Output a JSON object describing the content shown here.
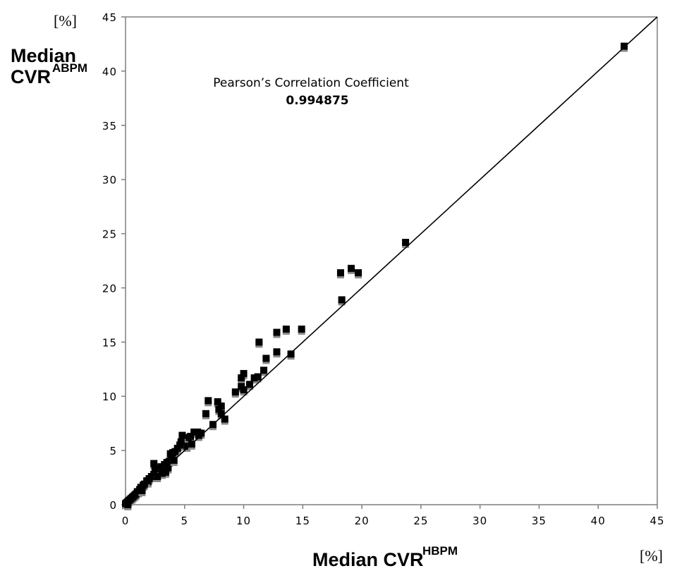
{
  "chart_data": {
    "type": "scatter",
    "title": "",
    "xlabel": "Median CVR",
    "xlabel_sup": "HBPM",
    "xunit": "[%]",
    "ylabel_line1": "Median",
    "ylabel_line2": "CVR",
    "ylabel_sup": "ABPM",
    "yunit": "[%]",
    "xlim": [
      0,
      45
    ],
    "ylim": [
      0,
      45
    ],
    "xticks": [
      "0",
      "5",
      "10",
      "15",
      "20",
      "25",
      "30",
      "35",
      "40",
      "45"
    ],
    "yticks": [
      "0",
      "5",
      "10",
      "15",
      "20",
      "25",
      "30",
      "35",
      "40",
      "45"
    ],
    "grid": false,
    "reference_line": {
      "from": [
        0,
        0
      ],
      "to": [
        45,
        45
      ],
      "label": "identity"
    },
    "annotation": {
      "label": "Pearson’s Correlation Coefficient",
      "value": "0.994875"
    },
    "colors": {
      "marker": "#000000",
      "marker_shadow": "#8a8a8a",
      "line": "#000000",
      "axis": "#7f7f7f"
    },
    "points": [
      [
        42.2,
        42.3
      ],
      [
        23.7,
        24.2
      ],
      [
        18.2,
        21.4
      ],
      [
        19.1,
        21.8
      ],
      [
        19.7,
        21.4
      ],
      [
        18.3,
        18.9
      ],
      [
        12.8,
        15.9
      ],
      [
        13.6,
        16.2
      ],
      [
        14.9,
        16.2
      ],
      [
        11.3,
        15.0
      ],
      [
        12.8,
        14.1
      ],
      [
        14.0,
        13.9
      ],
      [
        11.9,
        13.5
      ],
      [
        11.7,
        12.4
      ],
      [
        11.2,
        11.8
      ],
      [
        10.9,
        11.7
      ],
      [
        10.5,
        11.1
      ],
      [
        10.0,
        12.1
      ],
      [
        9.8,
        11.7
      ],
      [
        9.8,
        10.9
      ],
      [
        10.0,
        10.6
      ],
      [
        9.3,
        10.4
      ],
      [
        7.0,
        9.6
      ],
      [
        7.8,
        9.5
      ],
      [
        8.1,
        9.1
      ],
      [
        7.9,
        8.8
      ],
      [
        6.8,
        8.4
      ],
      [
        8.1,
        8.4
      ],
      [
        8.4,
        7.9
      ],
      [
        7.4,
        7.4
      ],
      [
        6.4,
        6.6
      ],
      [
        6.1,
        6.7
      ],
      [
        5.8,
        6.7
      ],
      [
        5.5,
        6.3
      ],
      [
        5.3,
        6.0
      ],
      [
        5.0,
        6.2
      ],
      [
        4.8,
        6.4
      ],
      [
        4.7,
        5.8
      ],
      [
        4.6,
        5.5
      ],
      [
        5.2,
        5.4
      ],
      [
        4.4,
        5.2
      ],
      [
        4.2,
        4.9
      ],
      [
        4.0,
        4.8
      ],
      [
        3.8,
        4.7
      ],
      [
        3.9,
        4.3
      ],
      [
        3.7,
        4.0
      ],
      [
        3.5,
        3.9
      ],
      [
        3.3,
        3.7
      ],
      [
        3.6,
        3.4
      ],
      [
        3.2,
        3.3
      ],
      [
        3.0,
        3.5
      ],
      [
        2.8,
        3.3
      ],
      [
        2.6,
        3.0
      ],
      [
        2.4,
        3.8
      ],
      [
        2.5,
        3.3
      ],
      [
        2.4,
        2.8
      ],
      [
        2.2,
        2.6
      ],
      [
        2.0,
        2.4
      ],
      [
        1.9,
        2.1
      ],
      [
        1.8,
        2.2
      ],
      [
        1.6,
        1.9
      ],
      [
        1.5,
        1.8
      ],
      [
        1.3,
        1.6
      ],
      [
        1.2,
        1.4
      ],
      [
        1.1,
        1.2
      ],
      [
        1.0,
        1.2
      ],
      [
        0.9,
        1.0
      ],
      [
        0.8,
        0.9
      ],
      [
        0.7,
        0.8
      ],
      [
        0.6,
        0.7
      ],
      [
        0.5,
        0.6
      ],
      [
        0.4,
        0.5
      ],
      [
        0.3,
        0.4
      ],
      [
        0.2,
        0.3
      ],
      [
        0.1,
        0.2
      ],
      [
        0.0,
        0.1
      ],
      [
        0.2,
        0.0
      ],
      [
        3.4,
        3.0
      ],
      [
        4.1,
        4.1
      ],
      [
        5.6,
        5.6
      ],
      [
        6.2,
        6.4
      ],
      [
        3.1,
        2.9
      ],
      [
        2.7,
        2.6
      ],
      [
        1.4,
        1.3
      ]
    ]
  }
}
